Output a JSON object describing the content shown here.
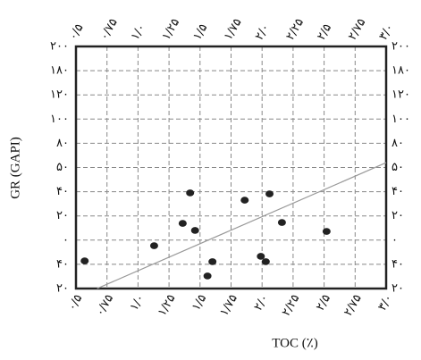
{
  "chart_data": {
    "type": "scatter",
    "x_label": "TOC (٪)",
    "y_label": "GR (GAPI)",
    "xlim": [
      0.5,
      3.0
    ],
    "xticks": [
      {
        "value": 0.5,
        "label": "۰/۵"
      },
      {
        "value": 0.75,
        "label": "۰/۷۵"
      },
      {
        "value": 1.0,
        "label": "۱/۰"
      },
      {
        "value": 1.25,
        "label": "۱/۲۵"
      },
      {
        "value": 1.5,
        "label": "۱/۵"
      },
      {
        "value": 1.75,
        "label": "۱/۷۵"
      },
      {
        "value": 2.0,
        "label": "۲/۰"
      },
      {
        "value": 2.25,
        "label": "۲/۲۵"
      },
      {
        "value": 2.5,
        "label": "۲/۵"
      },
      {
        "value": 2.75,
        "label": "۲/۷۵"
      },
      {
        "value": 3.0,
        "label": "۳/۰"
      }
    ],
    "ylim": [
      0,
      10
    ],
    "yticks": [
      {
        "value": 0,
        "label": "۲۰"
      },
      {
        "value": 1,
        "label": "۴۰"
      },
      {
        "value": 2,
        "label": "۰"
      },
      {
        "value": 3,
        "label": "۲۰"
      },
      {
        "value": 4,
        "label": "۴۰"
      },
      {
        "value": 5,
        "label": "۵۰"
      },
      {
        "value": 6,
        "label": "۸۰"
      },
      {
        "value": 7,
        "label": "۱۰۰"
      },
      {
        "value": 8,
        "label": "۱۲۰"
      },
      {
        "value": 9,
        "label": "۱۸۰"
      },
      {
        "value": 10,
        "label": "۲۰۰"
      }
    ],
    "grid": true,
    "color": "#222",
    "line_color": "#999",
    "x": [
      0.57,
      1.13,
      1.36,
      1.42,
      1.46,
      1.56,
      1.6,
      1.86,
      1.99,
      2.03,
      2.06,
      2.16,
      2.52
    ],
    "y": [
      1.14,
      1.77,
      2.69,
      3.95,
      2.4,
      0.52,
      1.11,
      3.65,
      1.33,
      1.11,
      3.91,
      2.73,
      2.36
    ],
    "trend_line": {
      "x": [
        0.67,
        3.0
      ],
      "y": [
        0,
        5.2
      ]
    }
  }
}
